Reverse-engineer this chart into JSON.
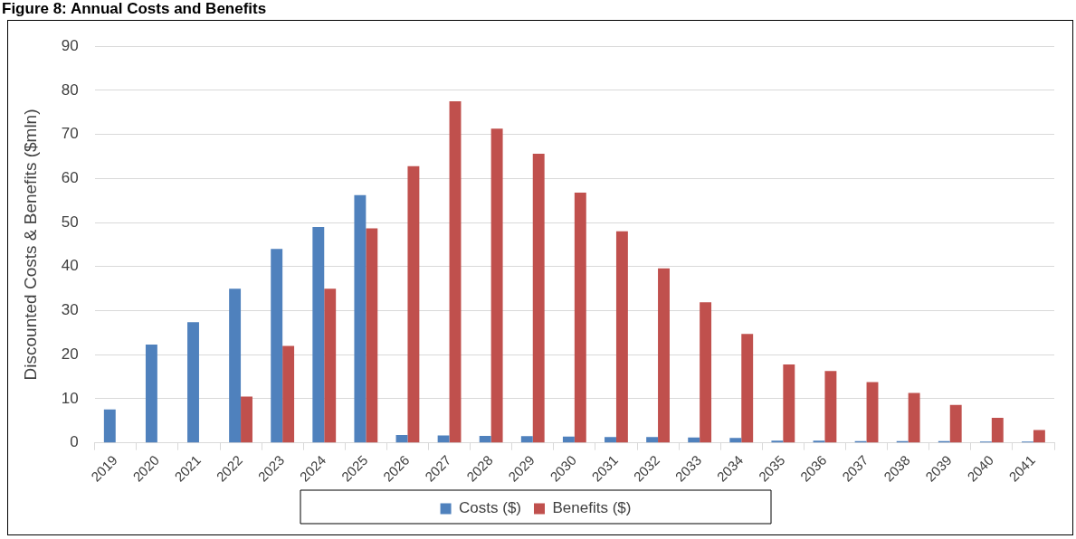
{
  "chart_data": {
    "type": "bar",
    "title": "Figure 8: Annual Costs and Benefits",
    "ylabel": "Discounted Costs & Benefits ($mln)",
    "categories": [
      "2019",
      "2020",
      "2021",
      "2022",
      "2023",
      "2024",
      "2025",
      "2026",
      "2027",
      "2028",
      "2029",
      "2030",
      "2031",
      "2032",
      "2033",
      "2034",
      "2035",
      "2036",
      "2037",
      "2038",
      "2039",
      "2040",
      "2041"
    ],
    "series": [
      {
        "name": "Costs ($)",
        "color": "#4f81bd",
        "values": [
          7.6,
          22.3,
          27.4,
          35,
          44,
          49,
          56.2,
          1.8,
          1.7,
          1.6,
          1.5,
          1.4,
          1.3,
          1.3,
          1.2,
          1.1,
          0.5,
          0.5,
          0.4,
          0.4,
          0.4,
          0.3,
          0.3
        ]
      },
      {
        "name": "Benefits ($)",
        "color": "#c0504d",
        "values": [
          null,
          null,
          null,
          10.5,
          22,
          35,
          48.7,
          62.8,
          77.5,
          71.3,
          65.6,
          56.8,
          48,
          39.6,
          31.9,
          24.7,
          17.8,
          16.3,
          13.8,
          11.3,
          8.6,
          5.7,
          2.9
        ]
      }
    ],
    "ylim": [
      0,
      90
    ],
    "yticks": [
      0,
      10,
      20,
      30,
      40,
      50,
      60,
      70,
      80,
      90
    ],
    "grid": "y",
    "legend": "bottom"
  }
}
